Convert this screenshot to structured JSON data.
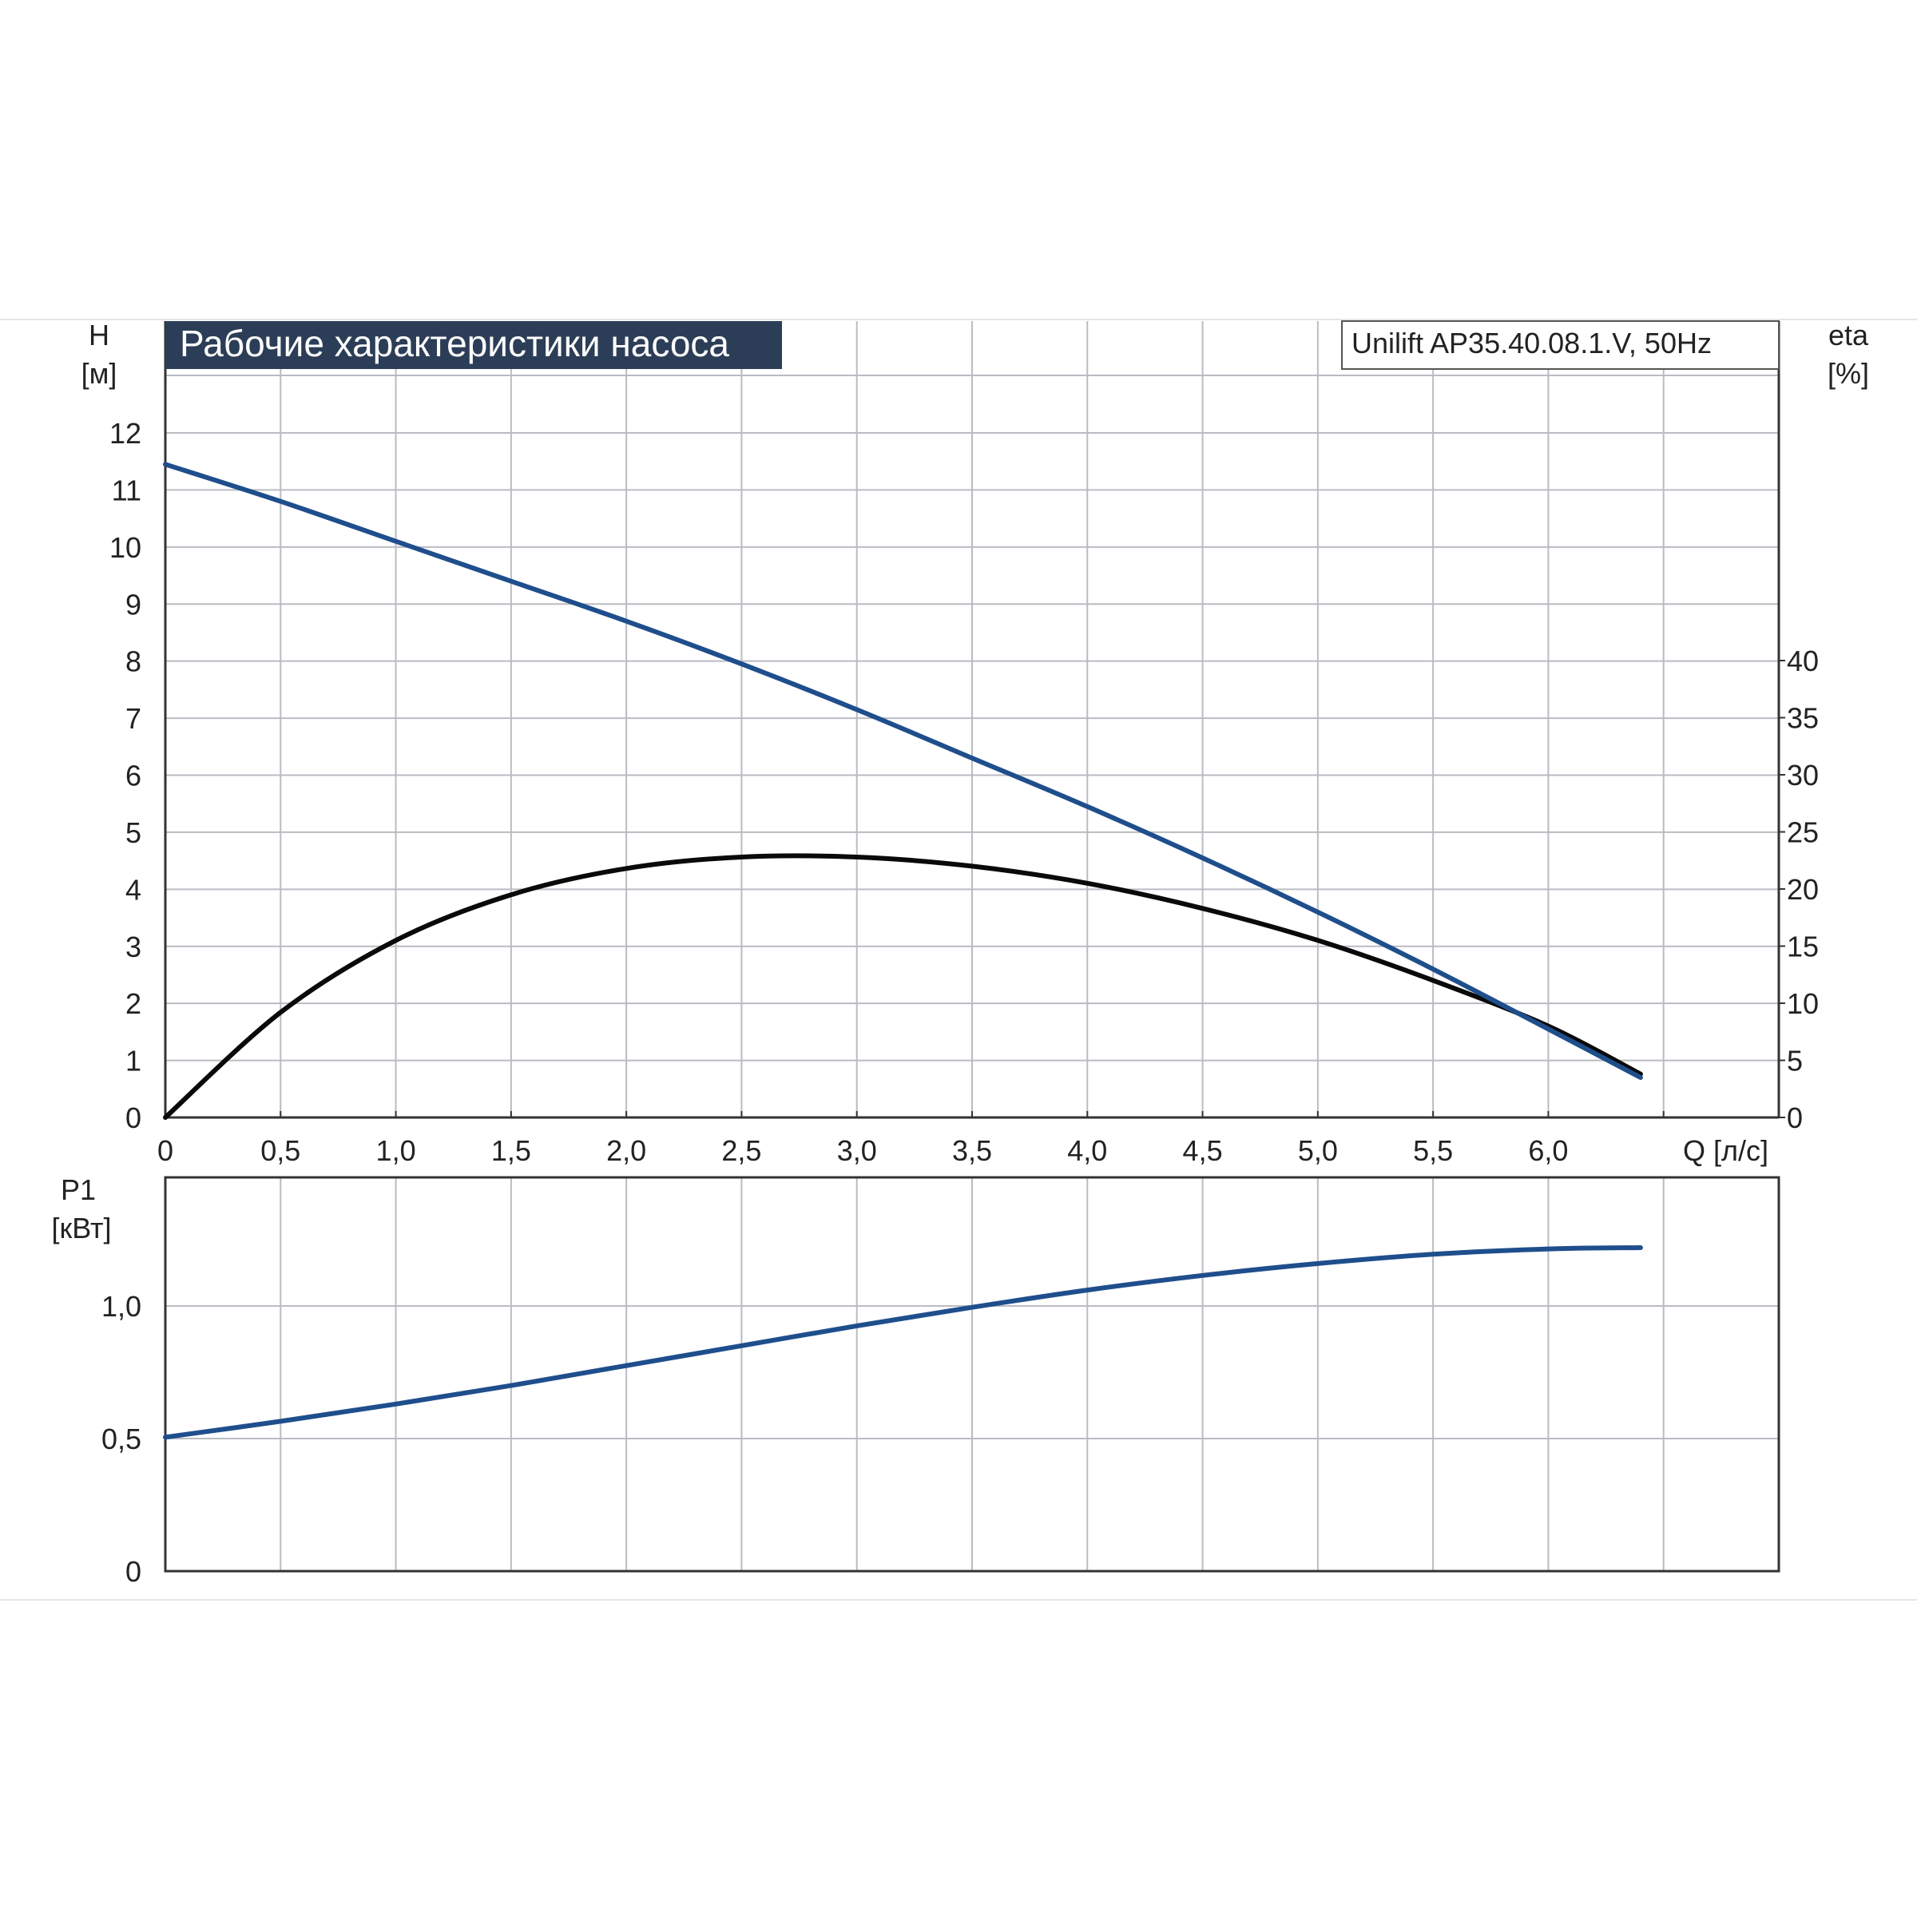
{
  "chart_data": [
    {
      "type": "line",
      "title": "Рабочие характеристики насоса",
      "model_label": "Unilift AP35.40.08.1.V, 50Hz",
      "xlabel": "Q [л/с]",
      "x_ticks": [
        "0",
        "0,5",
        "1,0",
        "1,5",
        "2,0",
        "2,5",
        "3,0",
        "3,5",
        "4,0",
        "4,5",
        "5,0",
        "5,5",
        "6,0"
      ],
      "xlim": [
        0,
        7.0
      ],
      "y_left": {
        "label_line1": "H",
        "label_line2": "[м]",
        "ylim": [
          0,
          14
        ],
        "ticks": [
          "0",
          "1",
          "2",
          "3",
          "4",
          "5",
          "6",
          "7",
          "8",
          "9",
          "10",
          "11",
          "12"
        ]
      },
      "y_right": {
        "label_line1": "eta",
        "label_line2": "[%]",
        "ylim": [
          0,
          70
        ],
        "ticks": [
          "0",
          "5",
          "10",
          "15",
          "20",
          "25",
          "30",
          "35",
          "40"
        ]
      },
      "grid": true,
      "colors": {
        "head": "#1f4e8c",
        "efficiency": "#0a0a0a",
        "grid": "#b9bcc2",
        "title_bg": "#2c3e57"
      },
      "series": [
        {
          "name": "H",
          "axis": "left",
          "x": [
            0,
            0.5,
            1.0,
            1.5,
            2.0,
            2.5,
            3.0,
            3.5,
            4.0,
            4.5,
            5.0,
            5.5,
            6.0,
            6.4
          ],
          "values": [
            11.45,
            10.8,
            10.1,
            9.4,
            8.7,
            7.95,
            7.15,
            6.3,
            5.45,
            4.55,
            3.6,
            2.6,
            1.55,
            0.7
          ]
        },
        {
          "name": "eta",
          "axis": "right",
          "x": [
            0,
            0.5,
            1.0,
            1.5,
            2.0,
            2.5,
            3.0,
            3.5,
            4.0,
            4.5,
            5.0,
            5.5,
            6.0,
            6.4
          ],
          "values": [
            0,
            9.2,
            15.5,
            19.5,
            21.8,
            22.8,
            22.8,
            22.0,
            20.5,
            18.3,
            15.5,
            12.0,
            8.0,
            3.8
          ]
        }
      ]
    },
    {
      "type": "line",
      "xlim": [
        0,
        7.0
      ],
      "y_left": {
        "label_line1": "P1",
        "label_line2": "[кВт]",
        "ylim": [
          0,
          1.5
        ],
        "ticks": [
          "0",
          "0,5",
          "1,0"
        ]
      },
      "grid": true,
      "colors": {
        "power": "#1f4e8c"
      },
      "series": [
        {
          "name": "P1",
          "axis": "left",
          "x": [
            0,
            0.5,
            1.0,
            1.5,
            2.0,
            2.5,
            3.0,
            3.5,
            4.0,
            4.5,
            5.0,
            5.5,
            6.0,
            6.4
          ],
          "values": [
            0.505,
            0.565,
            0.63,
            0.7,
            0.775,
            0.85,
            0.925,
            0.995,
            1.06,
            1.115,
            1.16,
            1.195,
            1.215,
            1.22
          ]
        }
      ]
    }
  ]
}
